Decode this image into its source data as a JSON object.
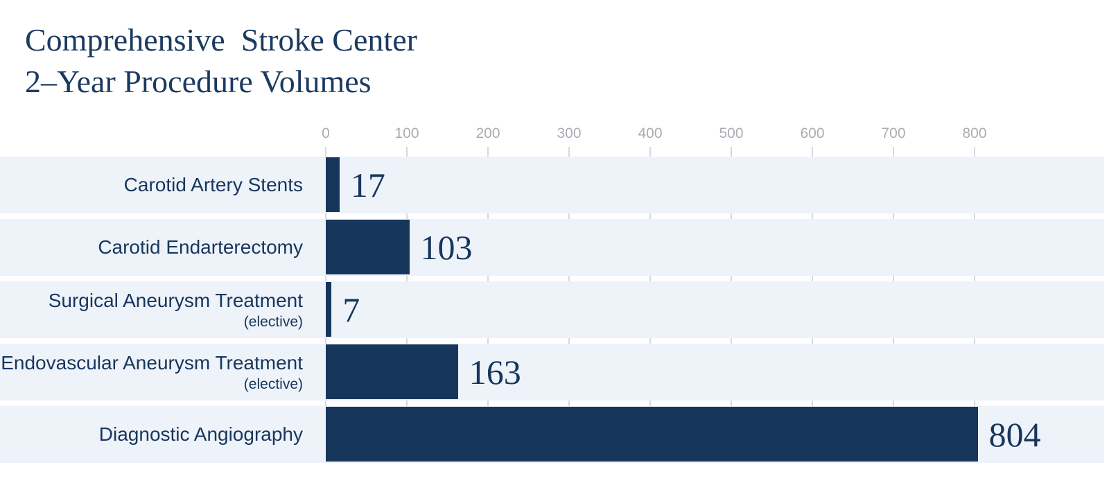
{
  "header": {
    "title_line1": "Comprehensive  Stroke Center",
    "title_line2": "2–Year Procedure Volumes"
  },
  "colors": {
    "navy": "#17365c",
    "title_text": "#1b3a61",
    "row_band": "#eef3fa",
    "gridline": "#d6d9dd",
    "tick_label": "#a9adb2",
    "background": "#ffffff"
  },
  "chart_data": {
    "type": "bar",
    "orientation": "horizontal",
    "title": "Comprehensive Stroke Center 2-Year Procedure Volumes",
    "categories": [
      "Carotid Artery Stents",
      "Carotid Endarterectomy",
      "Surgical Aneurysm Treatment",
      "Endovascular Aneurysm Treatment",
      "Diagnostic Angiography"
    ],
    "category_sublabels": [
      "",
      "",
      "(elective)",
      "(elective)",
      ""
    ],
    "values": [
      17,
      103,
      7,
      163,
      804
    ],
    "value_labels": [
      "17",
      "103",
      "7",
      "163",
      "804"
    ],
    "x_ticks": [
      0,
      100,
      200,
      300,
      400,
      500,
      600,
      700,
      800
    ],
    "xlim": [
      0,
      960
    ],
    "grid": true,
    "legend": "none",
    "value_labels_shown": true
  }
}
